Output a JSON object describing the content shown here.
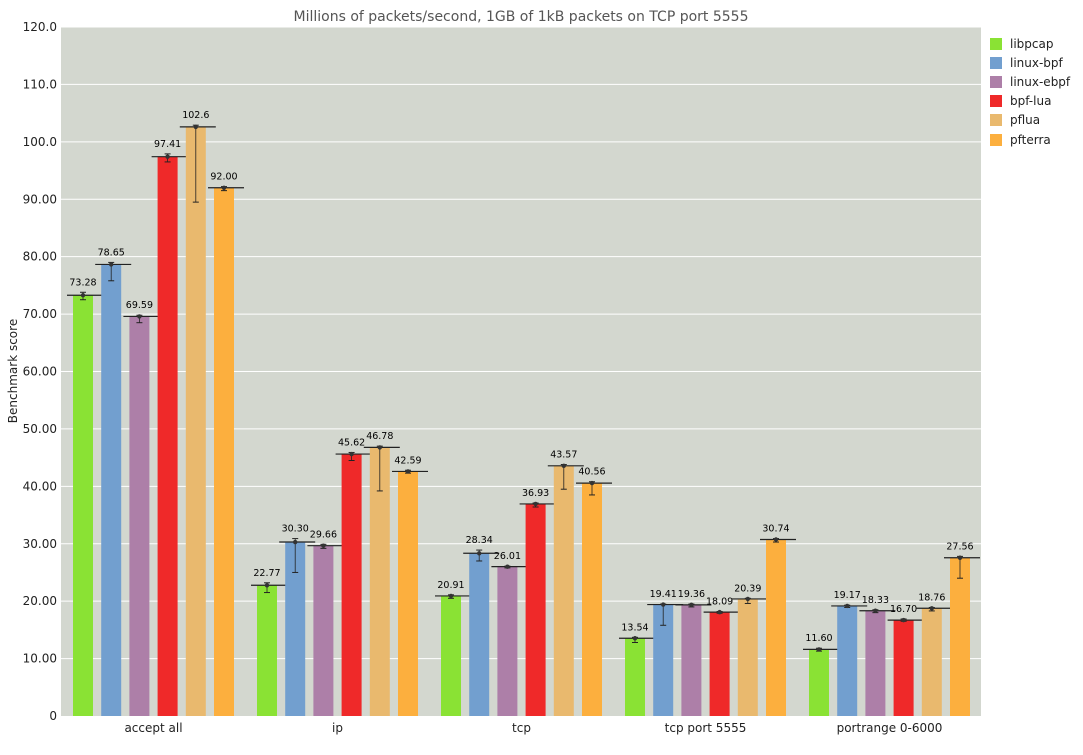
{
  "chart_data": {
    "type": "bar",
    "title": "Millions of packets/second, 1GB of 1kB packets on TCP port 5555",
    "ylabel": "Benchmark score",
    "xlabel": "",
    "ylim": [
      0,
      120
    ],
    "yticks": [
      "0",
      "10.00",
      "20.00",
      "30.00",
      "40.00",
      "50.00",
      "60.00",
      "70.00",
      "80.00",
      "90.00",
      "100.0",
      "110.0",
      "120.0"
    ],
    "grid": true,
    "legend_position": "right",
    "categories": [
      "accept all",
      "ip",
      "tcp",
      "tcp port 5555",
      "portrange 0-6000"
    ],
    "series": [
      {
        "name": "libpcap",
        "color": "#8ae234",
        "values": [
          73.28,
          22.77,
          20.91,
          13.54,
          11.6
        ],
        "labels": [
          "73.28",
          "22.77",
          "20.91",
          "13.54",
          "11.60"
        ]
      },
      {
        "name": "linux-bpf",
        "color": "#729fcf",
        "values": [
          78.65,
          30.3,
          28.34,
          19.41,
          19.17
        ],
        "labels": [
          "78.65",
          "30.30",
          "28.34",
          "19.41",
          "19.17"
        ]
      },
      {
        "name": "linux-ebpf",
        "color": "#ad7fa8",
        "values": [
          69.59,
          29.66,
          26.01,
          19.36,
          18.33
        ],
        "labels": [
          "69.59",
          "29.66",
          "26.01",
          "19.36",
          "18.33"
        ]
      },
      {
        "name": "bpf-lua",
        "color": "#ef2929",
        "values": [
          97.41,
          45.62,
          36.93,
          18.09,
          16.7
        ],
        "labels": [
          "97.41",
          "45.62",
          "36.93",
          "18.09",
          "16.70"
        ]
      },
      {
        "name": "pflua",
        "color": "#e9b96e",
        "values": [
          102.6,
          46.78,
          43.57,
          20.39,
          18.76
        ],
        "labels": [
          "102.6",
          "46.78",
          "43.57",
          "20.39",
          "18.76"
        ]
      },
      {
        "name": "pfterra",
        "color": "#fcaf3e",
        "values": [
          92.0,
          42.59,
          40.56,
          30.74,
          27.56
        ],
        "labels": [
          "92.00",
          "42.59",
          "40.56",
          "30.74",
          "27.56"
        ]
      }
    ],
    "errors_low": [
      [
        72.5,
        21.5,
        20.5,
        12.8,
        11.3
      ],
      [
        75.8,
        25.0,
        27.0,
        15.8,
        18.9
      ],
      [
        68.5,
        29.2,
        25.8,
        19.0,
        18.0
      ],
      [
        96.5,
        44.5,
        36.4,
        17.9,
        16.5
      ],
      [
        89.5,
        39.2,
        39.5,
        19.6,
        18.3
      ],
      [
        91.5,
        42.3,
        38.5,
        30.3,
        24.0
      ]
    ],
    "errors_high": [
      [
        73.8,
        23.2,
        21.1,
        13.7,
        11.8
      ],
      [
        79.0,
        30.9,
        28.9,
        19.5,
        19.3
      ],
      [
        69.8,
        29.9,
        26.1,
        19.5,
        18.5
      ],
      [
        97.9,
        45.9,
        37.1,
        18.2,
        16.9
      ],
      [
        102.9,
        47.0,
        43.8,
        20.5,
        18.9
      ],
      [
        92.2,
        42.8,
        40.8,
        30.9,
        27.8
      ]
    ]
  }
}
